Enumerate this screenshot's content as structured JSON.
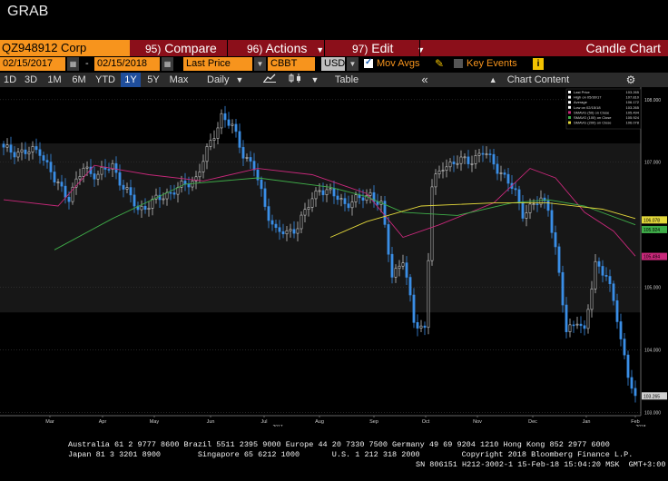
{
  "title": "GRAB",
  "toolbar": {
    "ticker": "QZ948912 Corp",
    "compare_num": "95)",
    "compare": "Compare",
    "actions_num": "96)",
    "actions": "Actions",
    "edit_num": "97)",
    "edit": "Edit",
    "chart_type": "Candle Chart"
  },
  "settings": {
    "start_date": "02/15/2017",
    "dash": "-",
    "end_date": "02/15/2018",
    "price_field": "Last Price",
    "source": "CBBT",
    "currency": "USD",
    "mov_avgs": "Mov Avgs",
    "key_events": "Key Events",
    "info": "i"
  },
  "range_bar": {
    "buttons": [
      "1D",
      "3D",
      "1M",
      "6M",
      "YTD",
      "1Y",
      "5Y",
      "Max"
    ],
    "active": "1Y",
    "interval": "Daily",
    "table": "Table",
    "back": "«",
    "chart_content": "Chart Content"
  },
  "legend": {
    "entries": [
      {
        "label": "Last Price",
        "value": "103.265",
        "color": "#ffffff"
      },
      {
        "label": "High on 05/30/17",
        "value": "107.810",
        "color": "#ffffff"
      },
      {
        "label": "Average",
        "value": "106.172",
        "color": "#ffffff"
      },
      {
        "label": "Low on 02/15/18",
        "value": "103.265",
        "color": "#ffffff"
      },
      {
        "label": "SMAVG (50) on Close",
        "value": "105.494",
        "color": "#c8287a"
      },
      {
        "label": "SMAVG (100) on Close",
        "value": "105.924",
        "color": "#3fae49"
      },
      {
        "label": "SMAVG (200) on Close",
        "value": "106.078",
        "color": "#e3d83b"
      }
    ]
  },
  "chart_data": {
    "type": "candlestick",
    "y_ticks": [
      "108.000",
      "107.000",
      "105.000",
      "104.000",
      "103.000"
    ],
    "y_tick_values": [
      108,
      107,
      105,
      104,
      103
    ],
    "ylim": [
      102.95,
      108.2
    ],
    "x_ticks": [
      "Mar",
      "Apr",
      "May",
      "Jun",
      "Jul",
      "Aug",
      "Sep",
      "Oct",
      "Nov",
      "Dec",
      "Jan",
      "Feb"
    ],
    "year_labels": [
      "2017",
      "2018"
    ],
    "right_tags": [
      {
        "value": 106.078,
        "label": "106.078",
        "color": "#e3d83b"
      },
      {
        "value": 105.924,
        "label": "105.924",
        "color": "#3fae49"
      },
      {
        "value": 105.494,
        "label": "105.494",
        "color": "#c8287a"
      },
      {
        "value": 103.265,
        "label": "103.265",
        "color": "#d0d0d0"
      }
    ],
    "close_anchors": [
      [
        0,
        107.2
      ],
      [
        6,
        107.15
      ],
      [
        10,
        107.2
      ],
      [
        14,
        106.7
      ],
      [
        18,
        106.45
      ],
      [
        22,
        106.9
      ],
      [
        26,
        106.8
      ],
      [
        30,
        106.95
      ],
      [
        33,
        106.6
      ],
      [
        37,
        106.25
      ],
      [
        41,
        106.35
      ],
      [
        45,
        106.5
      ],
      [
        49,
        106.6
      ],
      [
        53,
        106.75
      ],
      [
        57,
        107.3
      ],
      [
        60,
        107.75
      ],
      [
        63,
        107.55
      ],
      [
        66,
        107.15
      ],
      [
        69,
        106.9
      ],
      [
        72,
        106.3
      ],
      [
        75,
        105.9
      ],
      [
        78,
        105.85
      ],
      [
        81,
        106.0
      ],
      [
        84,
        106.3
      ],
      [
        87,
        106.6
      ],
      [
        90,
        106.5
      ],
      [
        94,
        106.35
      ],
      [
        98,
        106.4
      ],
      [
        101,
        106.5
      ],
      [
        104,
        106.3
      ],
      [
        107,
        105.2
      ],
      [
        110,
        105.45
      ],
      [
        113,
        104.45
      ],
      [
        116,
        104.35
      ],
      [
        118,
        106.6
      ],
      [
        121,
        106.95
      ],
      [
        125,
        107.0
      ],
      [
        129,
        107.05
      ],
      [
        132,
        107.15
      ],
      [
        135,
        107.0
      ],
      [
        138,
        106.75
      ],
      [
        141,
        106.5
      ],
      [
        143,
        106.2
      ],
      [
        146,
        106.3
      ],
      [
        148,
        106.4
      ],
      [
        150,
        106.3
      ],
      [
        152,
        105.6
      ],
      [
        155,
        104.3
      ],
      [
        158,
        104.5
      ],
      [
        160,
        104.25
      ],
      [
        163,
        105.4
      ],
      [
        166,
        105.2
      ],
      [
        169,
        104.5
      ],
      [
        172,
        103.6
      ],
      [
        174,
        103.27
      ]
    ],
    "sma50": [
      [
        0,
        106.4
      ],
      [
        15,
        106.3
      ],
      [
        25,
        106.95
      ],
      [
        40,
        106.8
      ],
      [
        55,
        106.7
      ],
      [
        70,
        106.9
      ],
      [
        85,
        106.8
      ],
      [
        100,
        106.5
      ],
      [
        110,
        105.8
      ],
      [
        120,
        106.0
      ],
      [
        135,
        106.35
      ],
      [
        145,
        106.9
      ],
      [
        152,
        106.75
      ],
      [
        160,
        106.2
      ],
      [
        168,
        105.9
      ],
      [
        174,
        105.5
      ]
    ],
    "sma100": [
      [
        14,
        105.6
      ],
      [
        30,
        106.1
      ],
      [
        50,
        106.65
      ],
      [
        70,
        106.75
      ],
      [
        90,
        106.6
      ],
      [
        100,
        106.45
      ],
      [
        110,
        106.2
      ],
      [
        125,
        106.15
      ],
      [
        140,
        106.35
      ],
      [
        150,
        106.4
      ],
      [
        160,
        106.3
      ],
      [
        174,
        106.0
      ]
    ],
    "sma200": [
      [
        90,
        105.8
      ],
      [
        100,
        106.05
      ],
      [
        115,
        106.3
      ],
      [
        135,
        106.35
      ],
      [
        150,
        106.35
      ],
      [
        165,
        106.25
      ],
      [
        174,
        106.1
      ]
    ]
  },
  "footer": {
    "line1": "Australia 61 2 9777 8600 Brazil 5511 2395 9000 Europe 44 20 7330 7500 Germany 49 69 9204 1210 Hong Kong 852 2977 6000",
    "line2": "Japan 81 3 3201 8900        Singapore 65 6212 1000       U.S. 1 212 318 2000         Copyright 2018 Bloomberg Finance L.P.",
    "line3": "SN 806151 H212-3002-1 15-Feb-18 15:04:20 MSK  GMT+3:00"
  }
}
